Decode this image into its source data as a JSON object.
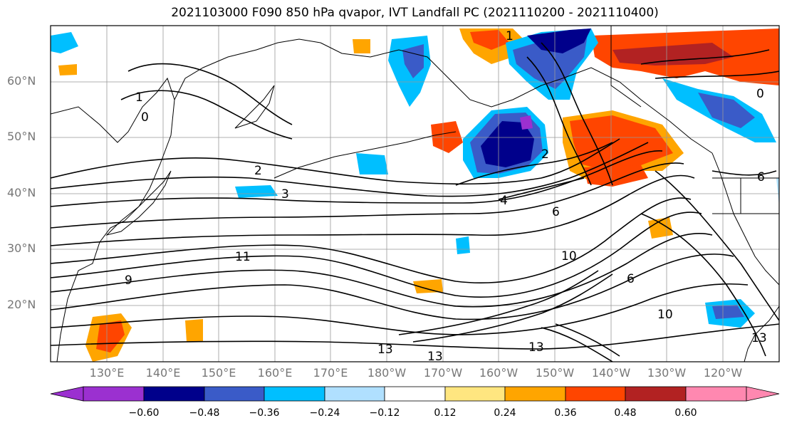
{
  "title": "2021103000 F090 850 hPa qvapor, IVT Landfall PC (2021110200 - 2021110400)",
  "lat_labels": [
    "60°N",
    "50°N",
    "40°N",
    "30°N",
    "20°N"
  ],
  "lon_labels": [
    "130°E",
    "140°E",
    "150°E",
    "160°E",
    "170°E",
    "180°W",
    "170°W",
    "160°W",
    "150°W",
    "140°W",
    "130°W",
    "120°W"
  ],
  "contour_labels": [
    "1",
    "0",
    "2",
    "3",
    "4",
    "6",
    "9",
    "10",
    "11",
    "13",
    "1",
    "0",
    "6",
    "2",
    "13",
    "10",
    "6",
    "13",
    "13"
  ],
  "colorbar": {
    "tick_labels": [
      "−0.60",
      "−0.48",
      "−0.36",
      "−0.24",
      "−0.12",
      "0.12",
      "0.24",
      "0.36",
      "0.48",
      "0.60"
    ],
    "colors": [
      "#9b30d0",
      "#00008b",
      "#3a5bc8",
      "#00bfff",
      "#b0e0ff",
      "#ffffff",
      "#ffe680",
      "#ffa500",
      "#ff4500",
      "#b22222",
      "#ff88b0"
    ]
  }
}
